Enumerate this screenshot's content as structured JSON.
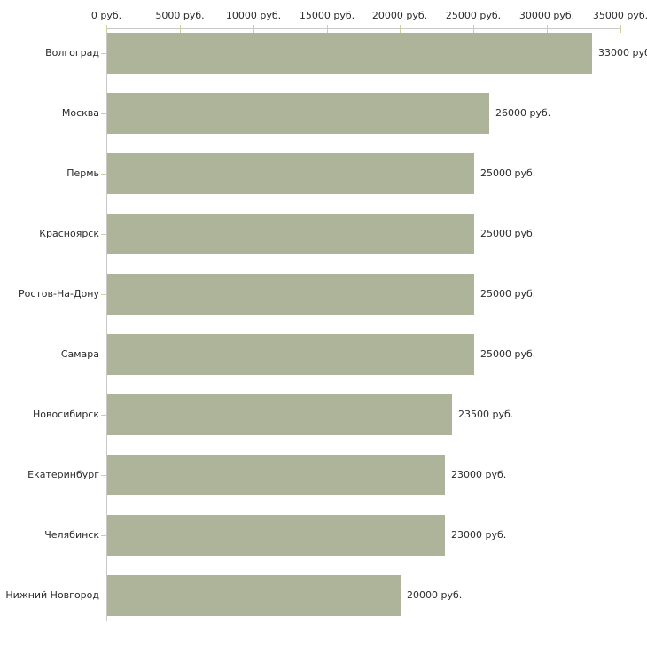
{
  "chart_data": {
    "type": "bar",
    "orientation": "horizontal",
    "title": "",
    "categories": [
      "Волгоград",
      "Москва",
      "Пермь",
      "Красноярск",
      "Ростов-На-Дону",
      "Самара",
      "Новосибирск",
      "Екатеринбург",
      "Челябинск",
      "Нижний Новгород"
    ],
    "values": [
      33000,
      26000,
      25000,
      25000,
      25000,
      25000,
      23500,
      23000,
      23000,
      20000
    ],
    "value_labels": [
      "33000 руб",
      "26000 руб.",
      "25000 руб.",
      "25000 руб.",
      "25000 руб.",
      "25000 руб.",
      "23500 руб.",
      "23000 руб.",
      "23000 руб.",
      "20000 руб."
    ],
    "x_axis": {
      "position": "top",
      "min": 0,
      "max": 35000,
      "tick_step": 5000,
      "tick_labels": [
        "0 руб.",
        "5000 руб.",
        "10000 руб.",
        "15000 руб.",
        "20000 руб.",
        "25000 руб.",
        "30000 руб.",
        "35000 руб."
      ]
    },
    "legend": false,
    "grid": false,
    "colors": {
      "bar": "#aeb49a",
      "axis_line": "#c9c9c9",
      "tick_mark": "#cdcf9f",
      "text": "#2b2b2b",
      "background": "#ffffff"
    }
  }
}
